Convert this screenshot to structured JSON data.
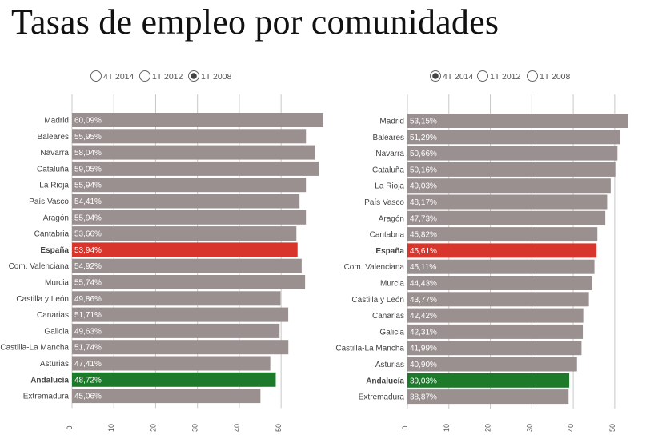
{
  "title": "Tasas de empleo por comunidades",
  "colors": {
    "bar_default": "#9a9090",
    "bar_spain": "#d8352c",
    "bar_andalucia": "#1d7a2a",
    "grid": "#c8c8c8",
    "radio_selected": "#444444"
  },
  "chart_data": [
    {
      "type": "bar",
      "orientation": "horizontal",
      "options": [
        {
          "label": "4T 2014",
          "selected": false
        },
        {
          "label": "1T 2012",
          "selected": false
        },
        {
          "label": "1T 2008",
          "selected": true
        }
      ],
      "categories": [
        "Madrid",
        "Baleares",
        "Navarra",
        "Cataluña",
        "La Rioja",
        "País Vasco",
        "Aragón",
        "Cantabria",
        "España",
        "Com. Valenciana",
        "Murcia",
        "Castilla y León",
        "Canarias",
        "Galicia",
        "Castilla-La Mancha",
        "Asturias",
        "Andalucía",
        "Extremadura"
      ],
      "values": [
        60.09,
        55.95,
        58.04,
        59.05,
        55.94,
        54.41,
        55.94,
        53.66,
        53.94,
        54.92,
        55.74,
        49.86,
        51.71,
        49.63,
        51.74,
        47.41,
        48.72,
        45.06
      ],
      "value_labels": [
        "60,09%",
        "55,95%",
        "58,04%",
        "59,05%",
        "55,94%",
        "54,41%",
        "55,94%",
        "53,66%",
        "53,94%",
        "54,92%",
        "55,74%",
        "49,86%",
        "51,71%",
        "49,63%",
        "51,74%",
        "47,41%",
        "48,72%",
        "45,06%"
      ],
      "highlight": {
        "España": "red",
        "Andalucía": "green"
      },
      "xticks": [
        0,
        10,
        20,
        30,
        40,
        50
      ],
      "xtick_labels": [
        "0",
        "10",
        "20",
        "30",
        "40",
        "50"
      ],
      "xlim": [
        0,
        60.5
      ],
      "grid": true
    },
    {
      "type": "bar",
      "orientation": "horizontal",
      "options": [
        {
          "label": "4T 2014",
          "selected": true
        },
        {
          "label": "1T 2012",
          "selected": false
        },
        {
          "label": "1T 2008",
          "selected": false
        }
      ],
      "categories": [
        "Madrid",
        "Baleares",
        "Navarra",
        "Cataluña",
        "La Rioja",
        "País Vasco",
        "Aragón",
        "Cantabria",
        "España",
        "Com. Valenciana",
        "Murcia",
        "Castilla y León",
        "Canarias",
        "Galicia",
        "Castilla-La Mancha",
        "Asturias",
        "Andalucía",
        "Extremadura"
      ],
      "values": [
        53.15,
        51.29,
        50.66,
        50.16,
        49.03,
        48.17,
        47.73,
        45.82,
        45.61,
        45.11,
        44.43,
        43.77,
        42.42,
        42.31,
        41.99,
        40.9,
        39.03,
        38.87
      ],
      "value_labels": [
        "53,15%",
        "51,29%",
        "50,66%",
        "50,16%",
        "49,03%",
        "48,17%",
        "47,73%",
        "45,82%",
        "45,61%",
        "45,11%",
        "44,43%",
        "43,77%",
        "42,42%",
        "42,31%",
        "41,99%",
        "40,90%",
        "39,03%",
        "38,87%"
      ],
      "highlight": {
        "España": "red",
        "Andalucía": "green"
      },
      "xticks": [
        0,
        10,
        20,
        30,
        40,
        50
      ],
      "xtick_labels": [
        "0",
        "10",
        "20",
        "30",
        "40",
        "50"
      ],
      "xlim": [
        0,
        53.5
      ],
      "grid": true
    }
  ]
}
